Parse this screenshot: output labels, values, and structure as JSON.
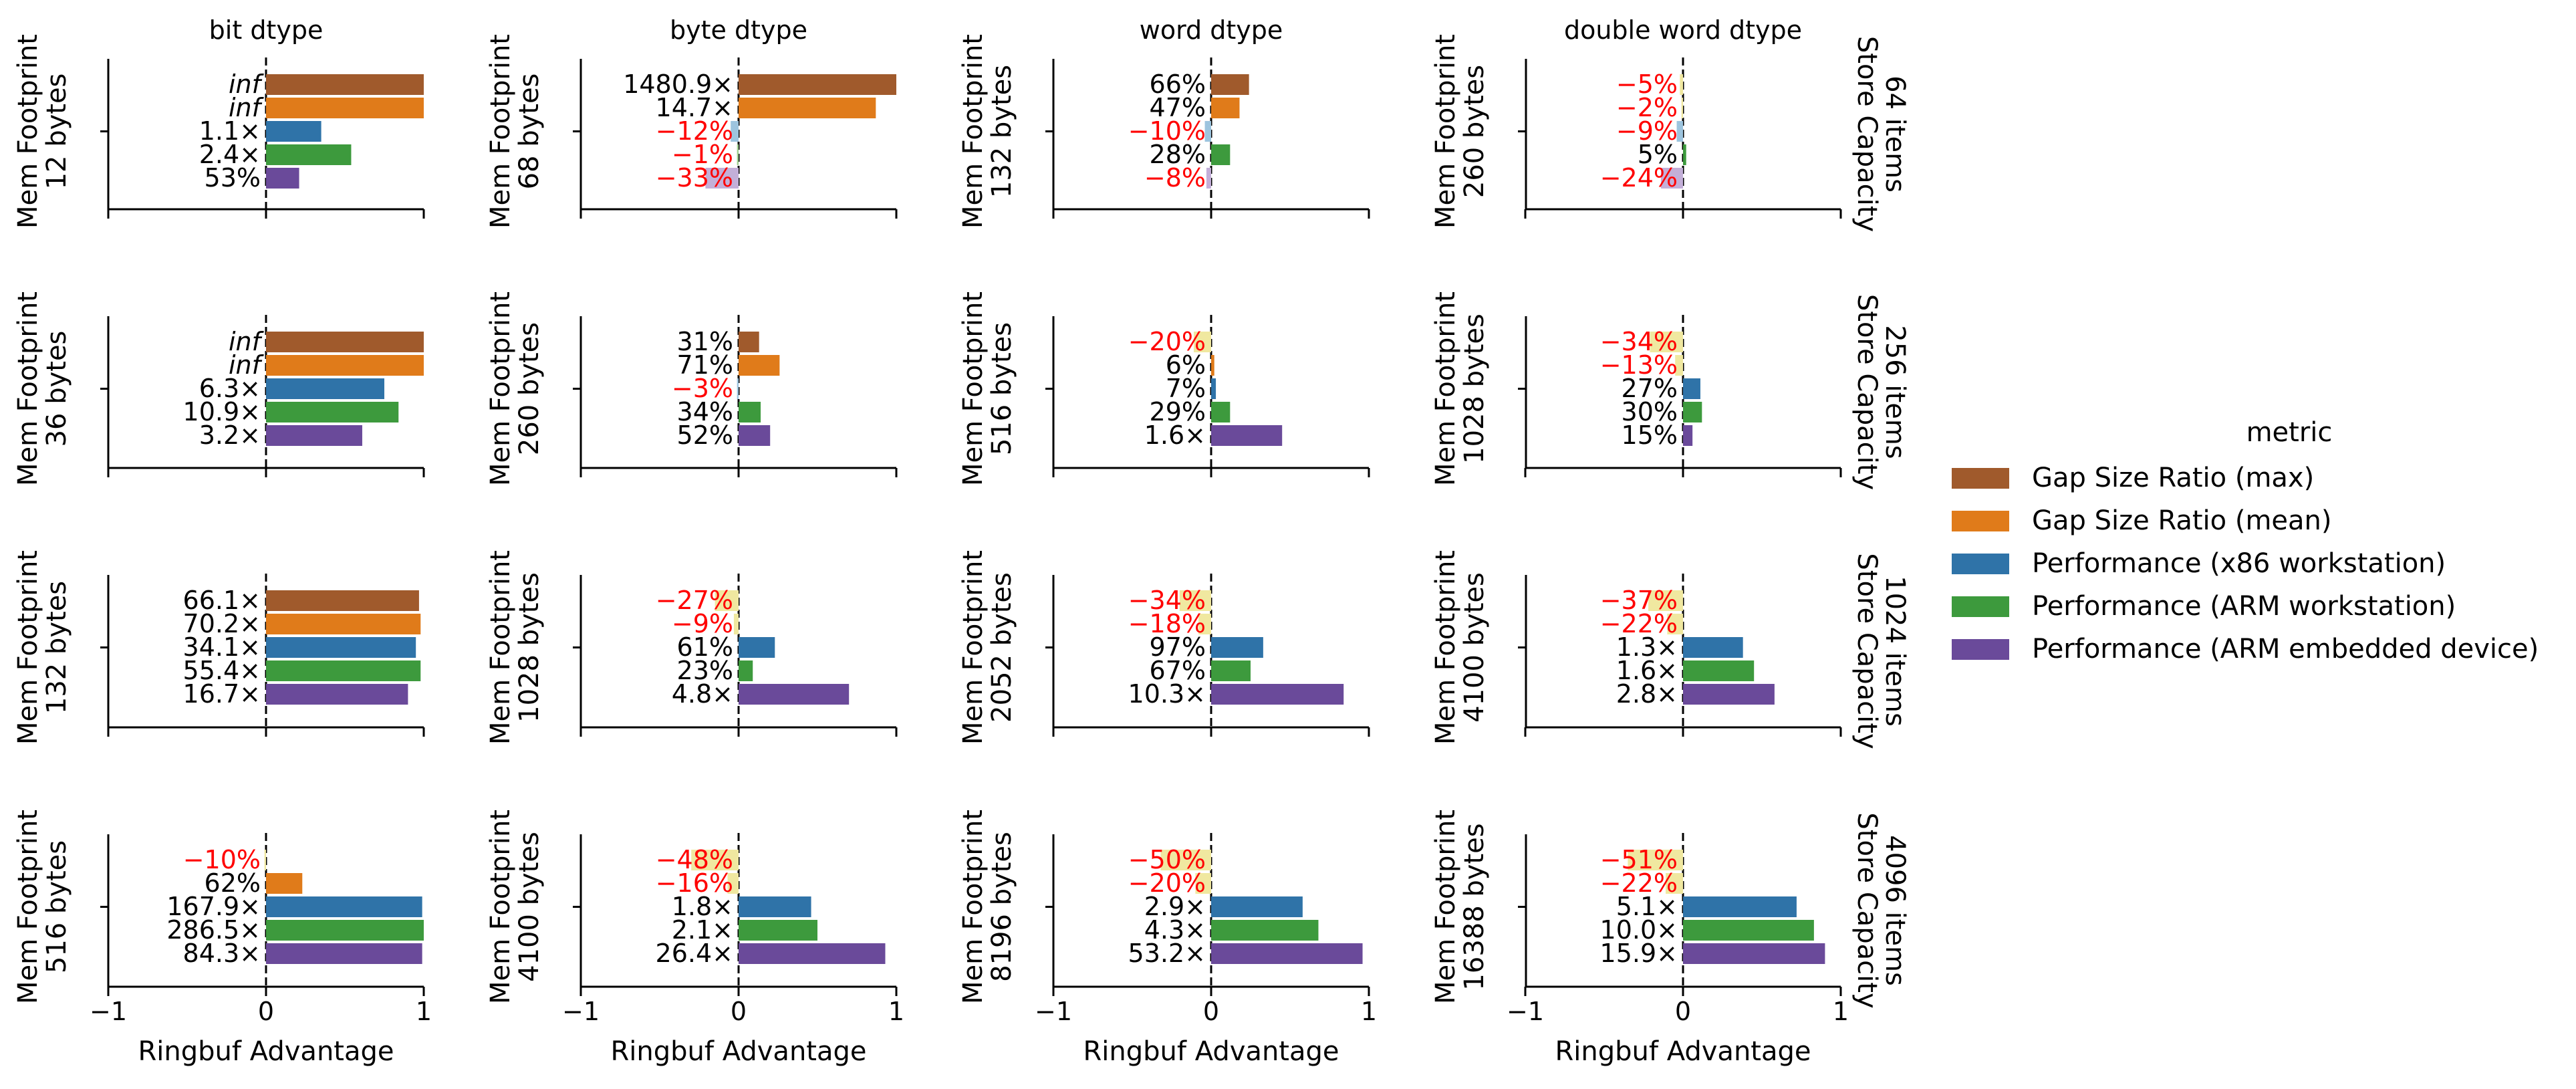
{
  "figure": {
    "col_titles": [
      "bit dtype",
      "byte dtype",
      "word dtype",
      "double word dtype"
    ],
    "row_labels": [
      {
        "line1": "Store Capacity",
        "line2": "64 items"
      },
      {
        "line1": "Store Capacity",
        "line2": "256 items"
      },
      {
        "line1": "Store Capacity",
        "line2": "1024 items"
      },
      {
        "line1": "Store Capacity",
        "line2": "4096 items"
      }
    ],
    "ylabel_prefix": "Mem Footprint",
    "xlabel": "Ringbuf Advantage",
    "x_tick_labels": [
      "−1",
      "0",
      "1"
    ],
    "legend_title": "metric",
    "legend_items": [
      "Gap Size Ratio (max)",
      "Gap Size Ratio (mean)",
      "Performance (x86 workstation)",
      "Performance (ARM workstation)",
      "Performance (ARM embedded device)"
    ]
  },
  "colors": {
    "series_positive": [
      "#a05a2c",
      "#e07b1a",
      "#2f73a8",
      "#3d9a3d",
      "#6a4a9a"
    ],
    "series_negative": [
      "#c49a80",
      "#f1b37a",
      "#9dc4de",
      "#9fd08f",
      "#c3afd8"
    ],
    "negative_label_text": "#ff0000",
    "negative_bar_fill": "#f0e8a0",
    "label_text": "#000000"
  },
  "chart_data": {
    "type": "bar",
    "orientation": "horizontal",
    "xlim": [
      -1,
      1
    ],
    "x_ticks": [
      -1,
      0,
      1
    ],
    "series_names": [
      "Gap Size Ratio (max)",
      "Gap Size Ratio (mean)",
      "Performance (x86 workstation)",
      "Performance (ARM workstation)",
      "Performance (ARM embedded device)"
    ],
    "panels": [
      [
        {
          "mem": "12 bytes",
          "bars": [
            {
              "v": 1.0,
              "label": "inf",
              "italic": true
            },
            {
              "v": 1.0,
              "label": "inf",
              "italic": true
            },
            {
              "v": 0.35,
              "label": "1.1×"
            },
            {
              "v": 0.54,
              "label": "2.4×"
            },
            {
              "v": 0.21,
              "label": "53%"
            }
          ]
        },
        {
          "mem": "68 bytes",
          "bars": [
            {
              "v": 1.0,
              "label": "1480.9×"
            },
            {
              "v": 0.87,
              "label": "14.7×"
            },
            {
              "v": -0.05,
              "label": "−12%"
            },
            {
              "v": -0.01,
              "label": "−1%"
            },
            {
              "v": -0.21,
              "label": "−33%"
            }
          ]
        },
        {
          "mem": "132 bytes",
          "bars": [
            {
              "v": 0.24,
              "label": "66%"
            },
            {
              "v": 0.18,
              "label": "47%"
            },
            {
              "v": -0.04,
              "label": "−10%"
            },
            {
              "v": 0.12,
              "label": "28%"
            },
            {
              "v": -0.03,
              "label": "−8%"
            }
          ]
        },
        {
          "mem": "260 bytes",
          "bars": [
            {
              "v": -0.02,
              "label": "−5%"
            },
            {
              "v": -0.01,
              "label": "−2%"
            },
            {
              "v": -0.04,
              "label": "−9%"
            },
            {
              "v": 0.02,
              "label": "5%"
            },
            {
              "v": -0.14,
              "label": "−24%"
            }
          ]
        }
      ],
      [
        {
          "mem": "36 bytes",
          "bars": [
            {
              "v": 1.0,
              "label": "inf",
              "italic": true
            },
            {
              "v": 1.0,
              "label": "inf",
              "italic": true
            },
            {
              "v": 0.75,
              "label": "6.3×"
            },
            {
              "v": 0.84,
              "label": "10.9×"
            },
            {
              "v": 0.61,
              "label": "3.2×"
            }
          ]
        },
        {
          "mem": "260 bytes",
          "bars": [
            {
              "v": 0.13,
              "label": "31%"
            },
            {
              "v": 0.26,
              "label": "71%"
            },
            {
              "v": -0.01,
              "label": "−3%"
            },
            {
              "v": 0.14,
              "label": "34%"
            },
            {
              "v": 0.2,
              "label": "52%"
            }
          ]
        },
        {
          "mem": "516 bytes",
          "bars": [
            {
              "v": -0.11,
              "label": "−20%"
            },
            {
              "v": 0.02,
              "label": "6%"
            },
            {
              "v": 0.03,
              "label": "7%"
            },
            {
              "v": 0.12,
              "label": "29%"
            },
            {
              "v": 0.45,
              "label": "1.6×"
            }
          ]
        },
        {
          "mem": "1028 bytes",
          "bars": [
            {
              "v": -0.21,
              "label": "−34%"
            },
            {
              "v": -0.05,
              "label": "−13%"
            },
            {
              "v": 0.11,
              "label": "27%"
            },
            {
              "v": 0.12,
              "label": "30%"
            },
            {
              "v": 0.06,
              "label": "15%"
            }
          ]
        }
      ],
      [
        {
          "mem": "132 bytes",
          "bars": [
            {
              "v": 0.97,
              "label": "66.1×"
            },
            {
              "v": 0.98,
              "label": "70.2×"
            },
            {
              "v": 0.95,
              "label": "34.1×"
            },
            {
              "v": 0.98,
              "label": "55.4×"
            },
            {
              "v": 0.9,
              "label": "16.7×"
            }
          ]
        },
        {
          "mem": "1028 bytes",
          "bars": [
            {
              "v": -0.15,
              "label": "−27%"
            },
            {
              "v": -0.03,
              "label": "−9%"
            },
            {
              "v": 0.23,
              "label": "61%"
            },
            {
              "v": 0.09,
              "label": "23%"
            },
            {
              "v": 0.7,
              "label": "4.8×"
            }
          ]
        },
        {
          "mem": "2052 bytes",
          "bars": [
            {
              "v": -0.2,
              "label": "−34%"
            },
            {
              "v": -0.08,
              "label": "−18%"
            },
            {
              "v": 0.33,
              "label": "97%"
            },
            {
              "v": 0.25,
              "label": "67%"
            },
            {
              "v": 0.84,
              "label": "10.3×"
            }
          ]
        },
        {
          "mem": "4100 bytes",
          "bars": [
            {
              "v": -0.22,
              "label": "−37%"
            },
            {
              "v": -0.1,
              "label": "−22%"
            },
            {
              "v": 0.38,
              "label": "1.3×"
            },
            {
              "v": 0.45,
              "label": "1.6×"
            },
            {
              "v": 0.58,
              "label": "2.8×"
            }
          ]
        }
      ],
      [
        {
          "mem": "516 bytes",
          "bars": [
            {
              "v": -0.01,
              "label": "−10%"
            },
            {
              "v": 0.23,
              "label": "62%"
            },
            {
              "v": 0.99,
              "label": "167.9×"
            },
            {
              "v": 1.0,
              "label": "286.5×"
            },
            {
              "v": 0.99,
              "label": "84.3×"
            }
          ]
        },
        {
          "mem": "4100 bytes",
          "bars": [
            {
              "v": -0.3,
              "label": "−48%"
            },
            {
              "v": -0.07,
              "label": "−16%"
            },
            {
              "v": 0.46,
              "label": "1.8×"
            },
            {
              "v": 0.5,
              "label": "2.1×"
            },
            {
              "v": 0.93,
              "label": "26.4×"
            }
          ]
        },
        {
          "mem": "8196 bytes",
          "bars": [
            {
              "v": -0.32,
              "label": "−50%"
            },
            {
              "v": -0.1,
              "label": "−20%"
            },
            {
              "v": 0.58,
              "label": "2.9×"
            },
            {
              "v": 0.68,
              "label": "4.3×"
            },
            {
              "v": 0.96,
              "label": "53.2×"
            }
          ]
        },
        {
          "mem": "16388 bytes",
          "bars": [
            {
              "v": -0.35,
              "label": "−51%"
            },
            {
              "v": -0.11,
              "label": "−22%"
            },
            {
              "v": 0.72,
              "label": "5.1×"
            },
            {
              "v": 0.83,
              "label": "10.0×"
            },
            {
              "v": 0.9,
              "label": "15.9×"
            }
          ]
        }
      ]
    ],
    "grid": false,
    "legend_position": "right"
  }
}
